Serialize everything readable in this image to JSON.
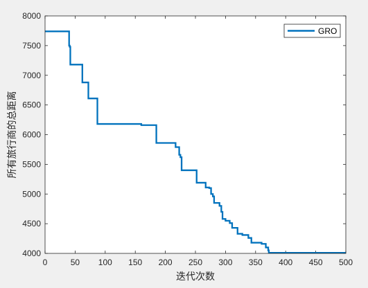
{
  "chart_data": {
    "type": "line",
    "title": "",
    "xlabel": "迭代次数",
    "ylabel": "所有旅行商的总距离",
    "xlim": [
      0,
      500
    ],
    "ylim": [
      4000,
      8000
    ],
    "x_ticks": [
      0,
      50,
      100,
      150,
      200,
      250,
      300,
      350,
      400,
      450,
      500
    ],
    "y_ticks": [
      4000,
      4500,
      5000,
      5500,
      6000,
      6500,
      7000,
      7500,
      8000
    ],
    "grid": false,
    "legend_position": "top-right",
    "series": [
      {
        "name": "GRO",
        "color": "#0072bd",
        "points": [
          [
            0,
            7740
          ],
          [
            40,
            7740
          ],
          [
            40,
            7500
          ],
          [
            41,
            7500
          ],
          [
            41,
            7480
          ],
          [
            42,
            7480
          ],
          [
            42,
            7180
          ],
          [
            62,
            7180
          ],
          [
            62,
            6880
          ],
          [
            72,
            6880
          ],
          [
            72,
            6610
          ],
          [
            87,
            6610
          ],
          [
            87,
            6180
          ],
          [
            160,
            6180
          ],
          [
            160,
            6160
          ],
          [
            185,
            6160
          ],
          [
            185,
            5860
          ],
          [
            217,
            5860
          ],
          [
            217,
            5790
          ],
          [
            223,
            5790
          ],
          [
            223,
            5660
          ],
          [
            225,
            5660
          ],
          [
            225,
            5620
          ],
          [
            227,
            5620
          ],
          [
            227,
            5400
          ],
          [
            252,
            5400
          ],
          [
            252,
            5190
          ],
          [
            267,
            5190
          ],
          [
            267,
            5110
          ],
          [
            273,
            5110
          ],
          [
            273,
            5100
          ],
          [
            276,
            5100
          ],
          [
            276,
            5000
          ],
          [
            279,
            5000
          ],
          [
            279,
            4960
          ],
          [
            281,
            4960
          ],
          [
            281,
            4850
          ],
          [
            290,
            4850
          ],
          [
            290,
            4800
          ],
          [
            293,
            4800
          ],
          [
            293,
            4700
          ],
          [
            295,
            4700
          ],
          [
            295,
            4580
          ],
          [
            300,
            4580
          ],
          [
            300,
            4550
          ],
          [
            307,
            4550
          ],
          [
            307,
            4510
          ],
          [
            311,
            4510
          ],
          [
            311,
            4430
          ],
          [
            320,
            4430
          ],
          [
            320,
            4330
          ],
          [
            328,
            4330
          ],
          [
            328,
            4310
          ],
          [
            338,
            4310
          ],
          [
            338,
            4260
          ],
          [
            343,
            4260
          ],
          [
            343,
            4180
          ],
          [
            360,
            4180
          ],
          [
            360,
            4160
          ],
          [
            367,
            4160
          ],
          [
            367,
            4100
          ],
          [
            371,
            4100
          ],
          [
            371,
            4050
          ],
          [
            372,
            4050
          ],
          [
            372,
            4010
          ],
          [
            500,
            4010
          ]
        ]
      }
    ]
  }
}
